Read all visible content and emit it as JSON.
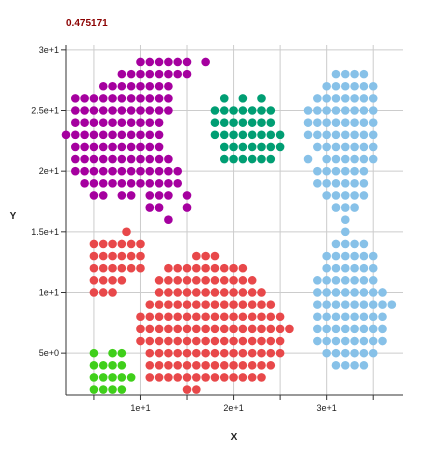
{
  "chart_data": {
    "type": "scatter",
    "title": "0.475171",
    "xlabel": "X",
    "ylabel": "Y",
    "xlim": [
      2.0,
      38.2
    ],
    "ylim": [
      1.55,
      30.4
    ],
    "grid": true,
    "legend": "none",
    "x_ticks": [
      {
        "value": 10,
        "label": "1e+1"
      },
      {
        "value": 20,
        "label": "2e+1"
      },
      {
        "value": 30,
        "label": "3e+1"
      }
    ],
    "x_minor_ticks": [
      5,
      15,
      25,
      35
    ],
    "y_ticks": [
      {
        "value": 5,
        "label": "5e+0"
      },
      {
        "value": 10,
        "label": "1e+1"
      },
      {
        "value": 15,
        "label": "1.5e+1"
      },
      {
        "value": 20,
        "label": "2e+1"
      },
      {
        "value": 25,
        "label": "2.5e+1"
      },
      {
        "value": 30,
        "label": "3e+1"
      }
    ],
    "spacing": 1.0,
    "series": [
      {
        "color": "#a5009f",
        "rows": [
          {
            "y": 29,
            "segments": [
              [
                10,
                15
              ],
              [
                17,
                17
              ]
            ]
          },
          {
            "y": 28,
            "segments": [
              [
                8,
                15
              ]
            ]
          },
          {
            "y": 27,
            "segments": [
              [
                6,
                13
              ]
            ]
          },
          {
            "y": 26,
            "segments": [
              [
                3,
                13
              ]
            ]
          },
          {
            "y": 25,
            "segments": [
              [
                3,
                13
              ]
            ]
          },
          {
            "y": 24,
            "segments": [
              [
                3,
                12
              ]
            ]
          },
          {
            "y": 23,
            "segments": [
              [
                2,
                12
              ]
            ]
          },
          {
            "y": 22,
            "segments": [
              [
                3,
                12
              ]
            ]
          },
          {
            "y": 21,
            "segments": [
              [
                3,
                13
              ]
            ]
          },
          {
            "y": 20,
            "segments": [
              [
                3,
                14
              ]
            ]
          },
          {
            "y": 19,
            "segments": [
              [
                4,
                14
              ]
            ]
          },
          {
            "y": 18,
            "segments": [
              [
                5,
                6
              ],
              [
                8,
                9
              ],
              [
                11,
                13
              ],
              [
                15,
                15
              ]
            ]
          },
          {
            "y": 17,
            "segments": [
              [
                11,
                12
              ],
              [
                15,
                15
              ]
            ]
          },
          {
            "y": 16,
            "segments": [
              [
                13,
                13
              ]
            ]
          }
        ]
      },
      {
        "color": "#009e73",
        "rows": [
          {
            "y": 26,
            "segments": [
              [
                19,
                19
              ],
              [
                21,
                21
              ],
              [
                23,
                23
              ]
            ]
          },
          {
            "y": 25,
            "segments": [
              [
                18,
                24
              ]
            ]
          },
          {
            "y": 24,
            "segments": [
              [
                18,
                24
              ]
            ]
          },
          {
            "y": 23,
            "segments": [
              [
                18,
                25
              ]
            ]
          },
          {
            "y": 22,
            "segments": [
              [
                19,
                25
              ]
            ]
          },
          {
            "y": 21,
            "segments": [
              [
                19,
                24
              ]
            ]
          }
        ]
      },
      {
        "color": "#87c1e8",
        "rows": [
          {
            "y": 28,
            "segments": [
              [
                31,
                34
              ]
            ]
          },
          {
            "y": 27,
            "segments": [
              [
                30,
                35
              ]
            ]
          },
          {
            "y": 26,
            "segments": [
              [
                29,
                35
              ]
            ]
          },
          {
            "y": 25,
            "segments": [
              [
                28,
                35
              ]
            ]
          },
          {
            "y": 24,
            "segments": [
              [
                28,
                35
              ]
            ]
          },
          {
            "y": 23,
            "segments": [
              [
                28,
                35
              ]
            ]
          },
          {
            "y": 22,
            "segments": [
              [
                29,
                35
              ]
            ]
          },
          {
            "y": 21,
            "segments": [
              [
                28,
                28
              ],
              [
                30,
                35
              ]
            ]
          },
          {
            "y": 20,
            "segments": [
              [
                29,
                34
              ]
            ]
          },
          {
            "y": 19,
            "segments": [
              [
                29,
                34
              ]
            ]
          },
          {
            "y": 18,
            "segments": [
              [
                30,
                34
              ]
            ]
          },
          {
            "y": 17,
            "segments": [
              [
                31,
                33
              ]
            ]
          },
          {
            "y": 16,
            "segments": [
              [
                32,
                32
              ]
            ]
          },
          {
            "y": 15,
            "segments": [
              [
                32,
                32
              ]
            ]
          },
          {
            "y": 14,
            "segments": [
              [
                31,
                34
              ]
            ]
          },
          {
            "y": 13,
            "segments": [
              [
                30,
                35
              ]
            ]
          },
          {
            "y": 12,
            "segments": [
              [
                30,
                35
              ]
            ]
          },
          {
            "y": 11,
            "segments": [
              [
                29,
                35
              ]
            ]
          },
          {
            "y": 10,
            "segments": [
              [
                29,
                36
              ]
            ]
          },
          {
            "y": 9,
            "segments": [
              [
                29,
                37
              ]
            ]
          },
          {
            "y": 8,
            "segments": [
              [
                29,
                36
              ]
            ]
          },
          {
            "y": 7,
            "segments": [
              [
                29,
                36
              ]
            ]
          },
          {
            "y": 6,
            "segments": [
              [
                29,
                36
              ]
            ]
          },
          {
            "y": 5,
            "segments": [
              [
                30,
                35
              ]
            ]
          },
          {
            "y": 4,
            "segments": [
              [
                31,
                34
              ]
            ]
          }
        ]
      },
      {
        "color": "#e8484a",
        "rows": [
          {
            "y": 14,
            "segments": [
              [
                5,
                10
              ]
            ]
          },
          {
            "y": 13,
            "segments": [
              [
                5,
                10
              ],
              [
                16,
                18
              ]
            ]
          },
          {
            "y": 12,
            "segments": [
              [
                5,
                10
              ],
              [
                13,
                21
              ]
            ]
          },
          {
            "y": 11,
            "segments": [
              [
                5,
                8
              ],
              [
                12,
                22
              ]
            ]
          },
          {
            "y": 10,
            "segments": [
              [
                5,
                7
              ],
              [
                12,
                23
              ]
            ]
          },
          {
            "y": 9,
            "segments": [
              [
                11,
                24
              ]
            ]
          },
          {
            "y": 8,
            "segments": [
              [
                10,
                25
              ]
            ]
          },
          {
            "y": 7,
            "segments": [
              [
                10,
                26
              ]
            ]
          },
          {
            "y": 6,
            "segments": [
              [
                10,
                25
              ]
            ]
          },
          {
            "y": 5,
            "segments": [
              [
                11,
                25
              ]
            ]
          },
          {
            "y": 4,
            "segments": [
              [
                11,
                24
              ]
            ]
          },
          {
            "y": 3,
            "segments": [
              [
                11,
                23
              ]
            ]
          },
          {
            "y": 2,
            "segments": [
              [
                15,
                16
              ]
            ]
          }
        ],
        "extra_points": [
          [
            8.5,
            15
          ]
        ]
      },
      {
        "color": "#3fcf1a",
        "rows": [
          {
            "y": 5,
            "segments": [
              [
                5,
                5
              ],
              [
                7,
                8
              ]
            ]
          },
          {
            "y": 4,
            "segments": [
              [
                5,
                8
              ]
            ]
          },
          {
            "y": 3,
            "segments": [
              [
                5,
                9
              ]
            ]
          },
          {
            "y": 2,
            "segments": [
              [
                5,
                8
              ]
            ]
          }
        ]
      }
    ]
  }
}
